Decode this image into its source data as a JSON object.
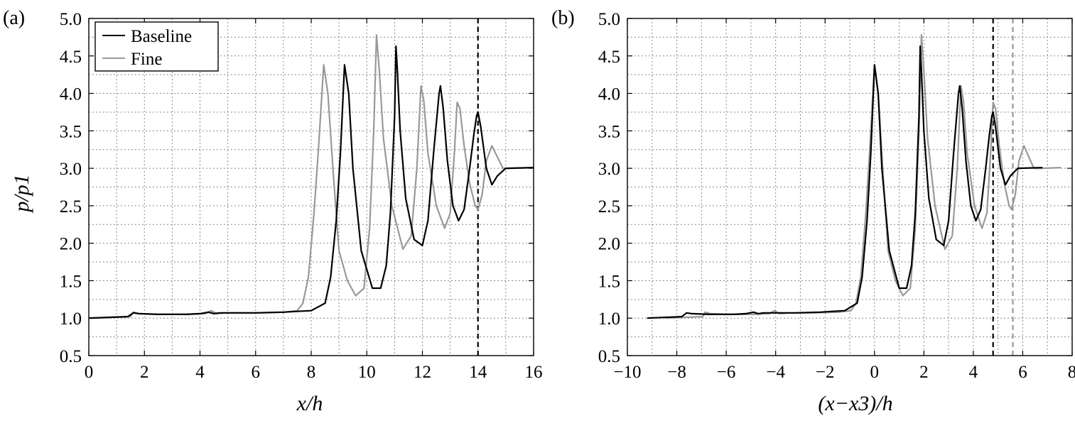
{
  "chart_data": [
    {
      "panel": "(a)",
      "type": "line",
      "xlabel": "x/h",
      "ylabel": "p/p1",
      "xlim": [
        0,
        16
      ],
      "ylim": [
        0.5,
        5.0
      ],
      "x_ticks": [
        0,
        2,
        4,
        6,
        8,
        10,
        12,
        14,
        16
      ],
      "x_tick_labels": [
        "0",
        "2",
        "4",
        "6",
        "8",
        "10",
        "12",
        "14",
        "16"
      ],
      "y_ticks": [
        0.5,
        1.0,
        1.5,
        2.0,
        2.5,
        3.0,
        3.5,
        4.0,
        4.5,
        5.0
      ],
      "y_tick_labels": [
        "0.5",
        "1.0",
        "1.5",
        "2.0",
        "2.5",
        "3.0",
        "3.5",
        "4.0",
        "4.5",
        "5.0"
      ],
      "grid": true,
      "legend": {
        "position": "top-left",
        "entries": [
          "Baseline",
          "Fine"
        ]
      },
      "vlines": [
        {
          "x": 14.0,
          "series": "Baseline",
          "style": "dashed"
        }
      ],
      "series": [
        {
          "name": "Baseline",
          "color": "#000000",
          "x": [
            0,
            1.4,
            1.6,
            1.8,
            2.5,
            3.5,
            4.0,
            4.3,
            4.5,
            4.7,
            5.0,
            6.0,
            7.0,
            7.5,
            8.0,
            8.5,
            8.7,
            8.9,
            9.05,
            9.2,
            9.35,
            9.5,
            9.8,
            10.2,
            10.5,
            10.7,
            10.85,
            11.0,
            11.05,
            11.1,
            11.2,
            11.4,
            11.7,
            12.0,
            12.2,
            12.4,
            12.6,
            12.65,
            12.75,
            12.9,
            13.1,
            13.3,
            13.5,
            13.7,
            13.85,
            13.95,
            14.0,
            14.1,
            14.3,
            14.5,
            14.7,
            15.0,
            16.0
          ],
          "y": [
            1.0,
            1.02,
            1.07,
            1.06,
            1.05,
            1.05,
            1.06,
            1.08,
            1.06,
            1.07,
            1.07,
            1.07,
            1.08,
            1.09,
            1.1,
            1.2,
            1.55,
            2.3,
            3.2,
            4.38,
            4.0,
            3.0,
            1.9,
            1.4,
            1.4,
            1.7,
            2.4,
            3.7,
            4.63,
            4.3,
            3.5,
            2.6,
            2.05,
            1.97,
            2.3,
            3.2,
            4.0,
            4.1,
            3.8,
            3.1,
            2.5,
            2.3,
            2.45,
            3.0,
            3.45,
            3.7,
            3.75,
            3.55,
            3.0,
            2.78,
            2.9,
            3.0,
            3.01
          ]
        },
        {
          "name": "Fine",
          "color": "#999999",
          "x": [
            0,
            1.5,
            1.6,
            1.8,
            2.5,
            3.5,
            4.2,
            4.4,
            4.6,
            5.0,
            6.0,
            7.0,
            7.5,
            7.7,
            7.9,
            8.1,
            8.25,
            8.45,
            8.6,
            8.8,
            9.0,
            9.3,
            9.6,
            9.9,
            10.1,
            10.25,
            10.35,
            10.45,
            10.6,
            10.9,
            11.3,
            11.6,
            11.8,
            11.95,
            12.05,
            12.2,
            12.5,
            12.8,
            13.0,
            13.15,
            13.25,
            13.35,
            13.5,
            13.7,
            13.9,
            14.0,
            14.15,
            14.3,
            14.5,
            14.7,
            14.9,
            15.2,
            16.0
          ],
          "y": [
            1.0,
            1.02,
            1.08,
            1.06,
            1.05,
            1.05,
            1.06,
            1.1,
            1.06,
            1.07,
            1.07,
            1.08,
            1.1,
            1.2,
            1.55,
            2.4,
            3.2,
            4.38,
            4.0,
            2.9,
            1.9,
            1.5,
            1.3,
            1.4,
            2.2,
            3.5,
            4.78,
            4.3,
            3.4,
            2.5,
            1.92,
            2.1,
            3.0,
            4.1,
            3.9,
            3.2,
            2.5,
            2.2,
            2.4,
            3.2,
            3.88,
            3.8,
            3.3,
            2.8,
            2.5,
            2.45,
            2.65,
            3.1,
            3.3,
            3.15,
            3.0,
            3.0,
            3.01
          ]
        }
      ]
    },
    {
      "panel": "(b)",
      "type": "line",
      "xlabel": "(x−x3)/h",
      "ylabel": "",
      "xlim": [
        -10,
        8
      ],
      "ylim": [
        0.5,
        5.0
      ],
      "x_ticks": [
        -10,
        -8,
        -6,
        -4,
        -2,
        0,
        2,
        4,
        6,
        8
      ],
      "x_tick_labels": [
        "−10",
        "−8",
        "−6",
        "−4",
        "−2",
        "0",
        "2",
        "4",
        "6",
        "8"
      ],
      "y_ticks": [
        0.5,
        1.0,
        1.5,
        2.0,
        2.5,
        3.0,
        3.5,
        4.0,
        4.5,
        5.0
      ],
      "y_tick_labels": [
        "0.5",
        "1.0",
        "1.5",
        "2.0",
        "2.5",
        "3.0",
        "3.5",
        "4.0",
        "4.5",
        "5.0"
      ],
      "grid": true,
      "vlines": [
        {
          "x": 4.8,
          "series": "Baseline",
          "style": "dashed"
        },
        {
          "x": 5.6,
          "series": "Fine",
          "style": "dashed"
        }
      ],
      "series": [
        {
          "name": "Baseline",
          "color": "#000000",
          "x": [
            -9.2,
            -7.8,
            -7.6,
            -7.4,
            -6.7,
            -5.7,
            -5.2,
            -4.9,
            -4.7,
            -4.5,
            -4.2,
            -3.2,
            -2.2,
            -1.7,
            -1.2,
            -0.7,
            -0.5,
            -0.3,
            -0.15,
            0.0,
            0.15,
            0.3,
            0.6,
            1.0,
            1.3,
            1.5,
            1.65,
            1.8,
            1.85,
            1.9,
            2.0,
            2.2,
            2.5,
            2.8,
            3.0,
            3.2,
            3.4,
            3.45,
            3.55,
            3.7,
            3.9,
            4.1,
            4.3,
            4.5,
            4.65,
            4.75,
            4.8,
            4.9,
            5.1,
            5.3,
            5.5,
            5.8,
            6.8
          ],
          "y": [
            1.0,
            1.02,
            1.07,
            1.06,
            1.05,
            1.05,
            1.06,
            1.08,
            1.06,
            1.07,
            1.07,
            1.07,
            1.08,
            1.09,
            1.1,
            1.2,
            1.55,
            2.3,
            3.2,
            4.38,
            4.0,
            3.0,
            1.9,
            1.4,
            1.4,
            1.7,
            2.4,
            3.7,
            4.63,
            4.3,
            3.5,
            2.6,
            2.05,
            1.97,
            2.3,
            3.2,
            4.0,
            4.1,
            3.8,
            3.1,
            2.5,
            2.3,
            2.45,
            3.0,
            3.45,
            3.7,
            3.75,
            3.55,
            3.0,
            2.78,
            2.9,
            3.0,
            3.01
          ]
        },
        {
          "name": "Fine",
          "color": "#999999",
          "x": [
            -8.45,
            -6.95,
            -6.85,
            -6.65,
            -5.95,
            -4.95,
            -4.25,
            -4.05,
            -3.85,
            -3.45,
            -2.45,
            -1.45,
            -0.95,
            -0.75,
            -0.55,
            -0.35,
            -0.2,
            0.0,
            0.15,
            0.35,
            0.55,
            0.85,
            1.15,
            1.45,
            1.65,
            1.8,
            1.9,
            2.0,
            2.15,
            2.45,
            2.85,
            3.15,
            3.35,
            3.5,
            3.6,
            3.75,
            4.05,
            4.35,
            4.55,
            4.7,
            4.8,
            4.9,
            5.05,
            5.25,
            5.45,
            5.55,
            5.7,
            5.85,
            6.05,
            6.25,
            6.45,
            6.75,
            7.55
          ],
          "y": [
            1.0,
            1.02,
            1.08,
            1.06,
            1.05,
            1.05,
            1.06,
            1.1,
            1.06,
            1.07,
            1.07,
            1.08,
            1.1,
            1.2,
            1.55,
            2.4,
            3.2,
            4.38,
            4.0,
            2.9,
            1.9,
            1.5,
            1.3,
            1.4,
            2.2,
            3.5,
            4.78,
            4.3,
            3.4,
            2.5,
            1.92,
            2.1,
            3.0,
            4.1,
            3.9,
            3.2,
            2.5,
            2.2,
            2.4,
            3.2,
            3.88,
            3.8,
            3.3,
            2.8,
            2.5,
            2.45,
            2.65,
            3.1,
            3.3,
            3.15,
            3.0,
            3.0,
            3.01
          ]
        }
      ]
    }
  ]
}
